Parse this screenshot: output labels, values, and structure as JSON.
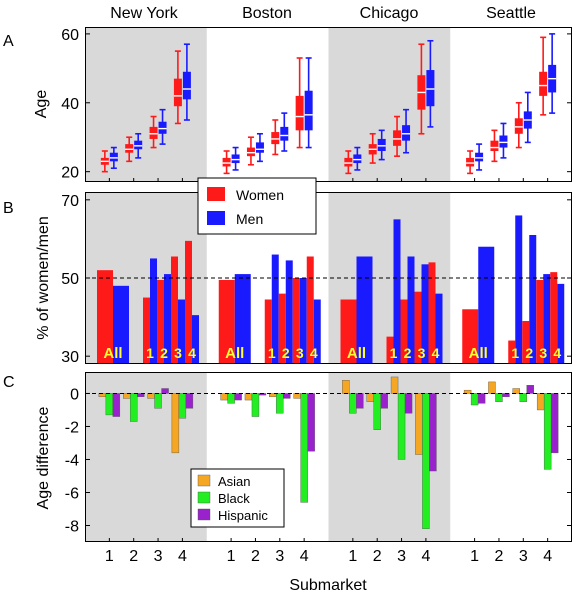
{
  "cities": [
    "New York",
    "Boston",
    "Chicago",
    "Seattle"
  ],
  "panel_letters": [
    "A",
    "B",
    "C"
  ],
  "xlabel": "Submarket",
  "submarket_ticks": [
    "1",
    "2",
    "3",
    "4"
  ],
  "colors": {
    "women": "#ff1a1a",
    "men": "#1a1aff",
    "asian": "#f5a623",
    "black": "#22ee22",
    "hispanic": "#9922cc",
    "shade": "#d9d9d9"
  },
  "chart_data": [
    {
      "panel": "A",
      "type": "box",
      "ylabel": "Age",
      "ylim": [
        17,
        62
      ],
      "yticks": [
        20,
        40,
        60
      ],
      "series_order": [
        "Women",
        "Men"
      ],
      "boxes": {
        "New York": [
          {
            "Women": [
              20,
              22,
              23,
              24,
              26
            ],
            "Men": [
              21,
              23,
              24,
              25.5,
              27
            ]
          },
          {
            "Women": [
              23,
              25.5,
              26.5,
              28,
              30
            ],
            "Men": [
              24,
              26.5,
              27.5,
              29,
              31
            ]
          },
          {
            "Women": [
              27,
              29.5,
              31,
              33,
              36
            ],
            "Men": [
              28,
              31,
              32.5,
              34.5,
              38
            ]
          },
          {
            "Women": [
              34,
              39,
              42,
              47,
              55
            ],
            "Men": [
              35,
              41,
              44,
              49,
              57
            ]
          }
        ],
        "Boston": [
          {
            "Women": [
              19.5,
              21.5,
              22.5,
              24,
              26
            ],
            "Men": [
              20.5,
              22.5,
              23.5,
              25,
              27
            ]
          },
          {
            "Women": [
              22,
              24.5,
              25.5,
              27,
              30
            ],
            "Men": [
              23,
              25.5,
              26.5,
              28.5,
              31
            ]
          },
          {
            "Women": [
              25,
              28,
              29.5,
              31.5,
              35
            ],
            "Men": [
              26,
              29,
              30.5,
              33,
              37
            ]
          },
          {
            "Women": [
              27,
              32,
              36,
              42,
              53
            ],
            "Men": [
              27,
              32,
              36.5,
              43.5,
              53
            ]
          }
        ],
        "Chicago": [
          {
            "Women": [
              19.5,
              21.5,
              22.5,
              24,
              26
            ],
            "Men": [
              20.5,
              22.5,
              23.5,
              25,
              27
            ]
          },
          {
            "Women": [
              22.5,
              25,
              26.5,
              28,
              31
            ],
            "Men": [
              23.5,
              26,
              27.5,
              29.5,
              32
            ]
          },
          {
            "Women": [
              24.5,
              27.5,
              29.5,
              32,
              36
            ],
            "Men": [
              25.5,
              29,
              31,
              33.5,
              38
            ]
          },
          {
            "Women": [
              31,
              38,
              43,
              48,
              57
            ],
            "Men": [
              33,
              39,
              44,
              49.5,
              58
            ]
          }
        ],
        "Seattle": [
          {
            "Women": [
              19.5,
              21.5,
              22.5,
              24,
              26
            ],
            "Men": [
              20.5,
              23,
              24,
              25.5,
              28
            ]
          },
          {
            "Women": [
              23,
              26,
              27,
              29,
              32
            ],
            "Men": [
              24,
              27,
              28.5,
              30.5,
              34
            ]
          },
          {
            "Women": [
              27,
              31,
              33,
              35.5,
              40
            ],
            "Men": [
              28.5,
              32.5,
              35,
              37.5,
              43
            ]
          },
          {
            "Women": [
              36.5,
              42,
              45,
              49,
              59
            ],
            "Men": [
              37,
              43,
              47,
              51,
              60
            ]
          }
        ]
      }
    },
    {
      "panel": "B",
      "type": "bar",
      "ylabel": "% of women/men",
      "ylim": [
        28,
        72
      ],
      "yticks": [
        30,
        50,
        70
      ],
      "reference_line": 50,
      "legend": [
        "Women",
        "Men"
      ],
      "legend_position": "top-left",
      "bar_labels": [
        "All",
        "1",
        "2",
        "3",
        "4"
      ],
      "series": [
        {
          "name": "Women",
          "values": {
            "New York": [
              52,
              45,
              49.5,
              55.5,
              59.5
            ],
            "Boston": [
              49.5,
              44.5,
              46,
              50,
              55.5
            ],
            "Chicago": [
              44.5,
              35,
              44.5,
              46.5,
              54
            ],
            "Seattle": [
              42,
              34,
              39,
              49.5,
              51.5
            ]
          }
        },
        {
          "name": "Men",
          "values": {
            "New York": [
              48,
              55,
              51,
              44.5,
              40.5
            ],
            "Boston": [
              51,
              56,
              54.5,
              50,
              44.5
            ],
            "Chicago": [
              55.5,
              65,
              55.5,
              53.5,
              46
            ],
            "Seattle": [
              58,
              66,
              61,
              51,
              48.5
            ]
          }
        }
      ]
    },
    {
      "panel": "C",
      "type": "bar",
      "ylabel": "Age difference",
      "ylim": [
        -9,
        1.3
      ],
      "yticks": [
        0,
        -2,
        -4,
        -6,
        -8
      ],
      "reference_line": 0,
      "legend": [
        "Asian",
        "Black",
        "Hispanic"
      ],
      "legend_position": "bottom-center",
      "series": [
        {
          "name": "Asian",
          "values": {
            "New York": [
              -0.2,
              -0.3,
              -0.3,
              -3.6
            ],
            "Boston": [
              -0.4,
              -0.4,
              -0.2,
              -0.3
            ],
            "Chicago": [
              0.8,
              -0.5,
              1.0,
              -3.7
            ],
            "Seattle": [
              0.2,
              0.7,
              0.3,
              -1.0
            ]
          }
        },
        {
          "name": "Black",
          "values": {
            "New York": [
              -1.3,
              -1.7,
              -0.9,
              -1.5
            ],
            "Boston": [
              -0.6,
              -1.4,
              -1.2,
              -6.6
            ],
            "Chicago": [
              -1.2,
              -2.2,
              -4.0,
              -8.2
            ],
            "Seattle": [
              -0.7,
              -0.5,
              -0.5,
              -4.6
            ]
          }
        },
        {
          "name": "Hispanic",
          "values": {
            "New York": [
              -1.4,
              -0.2,
              0.3,
              -0.9
            ],
            "Boston": [
              -0.4,
              -0.1,
              -0.3,
              -3.5
            ],
            "Chicago": [
              -0.9,
              -0.9,
              -1.2,
              -4.7
            ],
            "Seattle": [
              -0.6,
              -0.2,
              0.5,
              -3.6
            ]
          }
        }
      ]
    }
  ]
}
